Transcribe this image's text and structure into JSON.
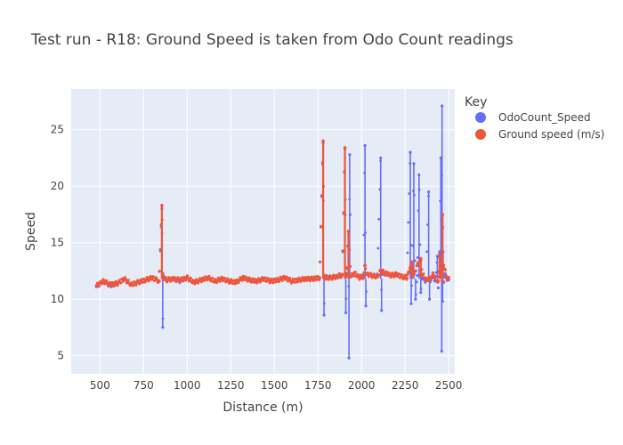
{
  "chart_data": {
    "type": "scatter",
    "title": "Test run - R18: Ground Speed is taken from Odo Count readings",
    "xlabel": "Distance (m)",
    "ylabel": "Speed",
    "xlim": [
      335,
      2535
    ],
    "ylim": [
      3.4,
      28.6
    ],
    "x_ticks": [
      500,
      750,
      1000,
      1250,
      1500,
      1750,
      2000,
      2250,
      2500
    ],
    "y_ticks": [
      5,
      10,
      15,
      20,
      25
    ],
    "x_tick_labels": [
      "500",
      "750",
      "1000",
      "1250",
      "1500",
      "1750",
      "2000",
      "2250",
      "2500"
    ],
    "y_tick_labels": [
      "5",
      "10",
      "15",
      "20",
      "25"
    ],
    "grid": true,
    "legend_title": "Key",
    "legend_position": "right",
    "series": [
      {
        "name": "OdoCount_Speed",
        "color": "#636efa",
        "mode": "markers",
        "x": [
          480,
          520,
          560,
          600,
          640,
          680,
          720,
          760,
          800,
          840,
          855,
          860,
          865,
          880,
          920,
          960,
          1000,
          1040,
          1080,
          1120,
          1160,
          1200,
          1240,
          1280,
          1320,
          1360,
          1400,
          1440,
          1480,
          1520,
          1560,
          1600,
          1640,
          1680,
          1720,
          1760,
          1780,
          1785,
          1790,
          1820,
          1860,
          1890,
          1905,
          1910,
          1915,
          1925,
          1928,
          1932,
          1940,
          1960,
          1990,
          2010,
          2020,
          2025,
          2030,
          2060,
          2090,
          2110,
          2115,
          2118,
          2140,
          2170,
          2200,
          2230,
          2260,
          2280,
          2285,
          2290,
          2300,
          2310,
          2320,
          2330,
          2340,
          2345,
          2350,
          2370,
          2385,
          2390,
          2395,
          2410,
          2425,
          2435,
          2440,
          2448,
          2455,
          2460,
          2462,
          2465,
          2468,
          2472,
          2478,
          2490,
          2500
        ],
        "y": [
          11.1,
          11.6,
          11.2,
          11.4,
          11.8,
          11.3,
          11.5,
          11.7,
          11.9,
          11.6,
          18.0,
          7.5,
          12.0,
          11.7,
          11.8,
          11.6,
          11.9,
          11.5,
          11.7,
          11.9,
          11.6,
          11.8,
          11.6,
          11.5,
          11.9,
          11.7,
          11.6,
          11.8,
          11.6,
          11.7,
          11.9,
          11.6,
          11.7,
          11.8,
          11.8,
          11.9,
          23.8,
          8.6,
          12.0,
          11.9,
          12.0,
          12.1,
          23.3,
          8.8,
          12.2,
          16.0,
          4.8,
          22.8,
          12.0,
          12.3,
          11.9,
          12.1,
          23.6,
          9.4,
          12.2,
          12.1,
          12.0,
          22.5,
          9.0,
          12.2,
          12.3,
          12.1,
          12.2,
          12.0,
          11.9,
          23.0,
          9.6,
          12.3,
          22.0,
          10.0,
          12.1,
          21.0,
          10.6,
          12.0,
          11.8,
          11.6,
          19.5,
          10.0,
          11.8,
          12.0,
          11.6,
          13.8,
          11.0,
          14.2,
          22.5,
          5.4,
          27.1,
          9.8,
          14.2,
          11.5,
          12.2,
          11.8,
          11.7
        ],
        "point_count": 1200
      },
      {
        "name": "Ground speed (m/s)",
        "color": "#ef553b",
        "mode": "markers",
        "x": [
          480,
          520,
          560,
          600,
          640,
          680,
          720,
          760,
          800,
          840,
          855,
          860,
          865,
          880,
          920,
          960,
          1000,
          1040,
          1080,
          1120,
          1160,
          1200,
          1240,
          1280,
          1320,
          1360,
          1400,
          1440,
          1480,
          1520,
          1560,
          1600,
          1640,
          1680,
          1720,
          1760,
          1780,
          1785,
          1790,
          1820,
          1860,
          1890,
          1905,
          1910,
          1915,
          1925,
          1940,
          1960,
          1990,
          2010,
          2020,
          2030,
          2060,
          2090,
          2110,
          2140,
          2170,
          2200,
          2230,
          2260,
          2280,
          2290,
          2300,
          2320,
          2340,
          2350,
          2370,
          2390,
          2410,
          2440,
          2448,
          2455,
          2460,
          2462,
          2465,
          2470,
          2490,
          2500
        ],
        "y": [
          11.2,
          11.6,
          11.3,
          11.4,
          11.8,
          11.3,
          11.5,
          11.7,
          11.9,
          11.6,
          18.3,
          12.2,
          11.9,
          11.7,
          11.8,
          11.7,
          11.9,
          11.5,
          11.7,
          11.9,
          11.6,
          11.8,
          11.6,
          11.5,
          11.9,
          11.7,
          11.6,
          11.8,
          11.6,
          11.7,
          11.9,
          11.6,
          11.7,
          11.8,
          11.8,
          11.9,
          24.0,
          12.0,
          11.9,
          11.9,
          12.0,
          12.2,
          23.4,
          12.0,
          12.3,
          16.0,
          12.0,
          12.3,
          11.9,
          12.0,
          13.0,
          12.2,
          12.1,
          12.0,
          12.5,
          12.3,
          12.1,
          12.2,
          12.0,
          11.9,
          12.8,
          13.3,
          12.2,
          13.0,
          13.6,
          12.2,
          11.7,
          11.8,
          12.2,
          11.6,
          14.0,
          13.0,
          13.3,
          11.6,
          17.5,
          13.0,
          11.9,
          11.8
        ]
      }
    ]
  }
}
